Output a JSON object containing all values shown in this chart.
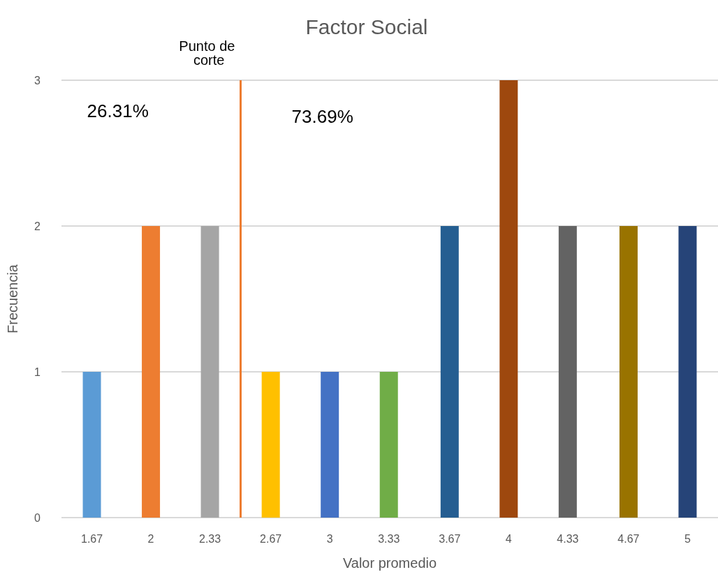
{
  "chart_data": {
    "type": "bar",
    "title": "Factor Social",
    "xlabel": "Valor promedio",
    "ylabel": "Frecuencia",
    "x": [
      1.67,
      2,
      2.33,
      2.67,
      3,
      3.33,
      3.67,
      4,
      4.33,
      4.67,
      5
    ],
    "values": [
      1,
      2,
      2,
      1,
      1,
      1,
      2,
      3,
      2,
      2,
      2
    ],
    "colors": [
      "#5b9bd5",
      "#ed7d31",
      "#a5a5a5",
      "#ffc000",
      "#4472c4",
      "#70ad47",
      "#255e91",
      "#9e480e",
      "#636363",
      "#997300",
      "#264478"
    ],
    "xlim": [
      1.5,
      5.17
    ],
    "xticks": [
      1.67,
      2,
      2.33,
      2.67,
      3,
      3.33,
      3.67,
      4,
      4.33,
      4.67,
      5
    ],
    "ylim": [
      0,
      3
    ],
    "yticks": [
      0,
      1,
      2,
      3
    ],
    "grid": "y",
    "ref_lines": [
      {
        "axis": "x",
        "value": 2.5,
        "label": "Punto de corte",
        "color": "#ed7d31"
      }
    ],
    "annotations": [
      "26.31%",
      "73.69%"
    ]
  }
}
